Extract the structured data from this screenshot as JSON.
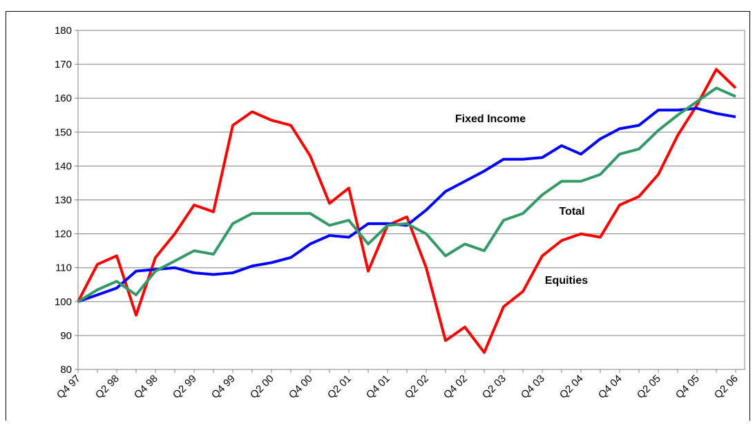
{
  "chart_data": {
    "type": "line",
    "categories": [
      "Q4 97",
      null,
      "Q2 98",
      null,
      "Q4 98",
      null,
      "Q2 99",
      null,
      "Q4 99",
      null,
      "Q2 00",
      null,
      "Q4 00",
      null,
      "Q2 01",
      null,
      "Q4 01",
      null,
      "Q2 02",
      null,
      "Q4 02",
      null,
      "Q2 03",
      null,
      "Q4 03",
      null,
      "Q2 04",
      null,
      "Q4 04",
      null,
      "Q2 05",
      null,
      "Q4 05",
      null,
      "Q2 06"
    ],
    "series": [
      {
        "name": "Equities",
        "color": "#ff0000",
        "values": [
          100,
          111,
          113.5,
          96,
          113,
          120,
          128.5,
          126.5,
          152,
          156,
          153.5,
          152,
          143,
          129,
          133.5,
          109,
          122.5,
          125,
          110,
          88.5,
          92.5,
          85,
          98.5,
          103,
          113.5,
          118,
          120,
          119,
          128.5,
          131,
          137.5,
          149,
          158,
          168.5,
          163
        ]
      },
      {
        "name": "Fixed Income",
        "color": "#0000ff",
        "values": [
          100,
          102,
          104,
          109,
          109.5,
          110,
          108.5,
          108,
          108.5,
          110.5,
          111.5,
          113,
          117,
          119.5,
          119,
          123,
          123,
          122.5,
          127,
          132.5,
          135.5,
          138.5,
          142,
          142,
          142.5,
          146,
          143.5,
          148,
          151,
          152,
          156.5,
          156.5,
          157,
          155.5,
          154.5
        ]
      },
      {
        "name": "Total",
        "color": "#339966",
        "values": [
          100,
          103.5,
          106,
          102,
          109,
          112,
          115,
          114,
          123,
          126,
          126,
          126,
          126,
          122.5,
          124,
          117,
          122.5,
          123,
          120,
          113.5,
          117,
          115,
          124,
          126,
          131.5,
          135.5,
          135.5,
          137.5,
          143.5,
          145,
          150.5,
          155,
          159,
          163,
          160.5
        ]
      }
    ],
    "ylim": [
      80,
      180
    ],
    "yticks": [
      80,
      90,
      100,
      110,
      120,
      130,
      140,
      150,
      160,
      170,
      180
    ],
    "grid": true
  }
}
